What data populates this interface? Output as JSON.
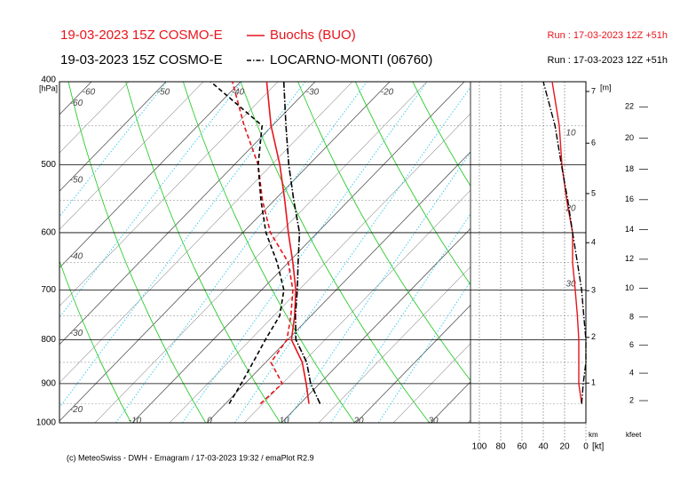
{
  "chart_data": {
    "type": "emagram",
    "ylabel": "[hPa]",
    "ylim": [
      1000,
      400
    ],
    "yticks": [
      400,
      500,
      600,
      700,
      800,
      900,
      1000
    ],
    "log_y": true,
    "isotherm_labels": {
      "top": [
        -60,
        -50,
        -40,
        -30,
        -20
      ],
      "left": [
        -60,
        -50,
        -40,
        -30,
        -20
      ],
      "bottom": [
        -10,
        0,
        10,
        20,
        30
      ]
    },
    "levels": [
      950,
      900,
      850,
      800,
      750,
      700,
      650,
      600,
      550,
      500,
      450,
      400
    ],
    "series": [
      {
        "name": "Buochs (BUO)",
        "title": "19-03-2023 15Z COSMO-E",
        "run": "Run : 17-03-2023 12Z +51h",
        "color": "#e8141b",
        "linestyle": "solid",
        "temperature": [
          11.2,
          8.2,
          4.9,
          0.5,
          -2.2,
          -5.4,
          -9.4,
          -13.9,
          -18.6,
          -23.9,
          -30.2,
          -36.5
        ],
        "dewpoint": [
          4.7,
          5.0,
          0.7,
          -0.1,
          -2.7,
          -5.8,
          -10.0,
          -16.3,
          -21.6,
          -26.8,
          -33.8,
          -41.1
        ],
        "wind_speed": [
          4,
          6.7,
          6.7,
          6.7,
          8,
          10,
          12.5,
          12.5,
          18,
          22.5,
          25,
          31.7
        ]
      },
      {
        "name": "LOCARNO-MONTI (06760)",
        "title": "19-03-2023 15Z COSMO-E",
        "run": "Run : 17-03-2023 12Z +51h",
        "color": "#000000",
        "linestyle": "dashdot",
        "temperature": [
          12.7,
          8.8,
          5.5,
          1.1,
          -2.1,
          -5.2,
          -8.7,
          -12.4,
          -17.4,
          -22.7,
          -28.2,
          -34.2
        ],
        "dewpoint": [
          0.5,
          -0.5,
          -1.7,
          -3.0,
          -4.2,
          -7.0,
          -11.5,
          -16.9,
          -21.8,
          -26.8,
          -31.4,
          -44.0
        ],
        "wind_speed": [
          4,
          2.5,
          0,
          0,
          2,
          4,
          8,
          12.5,
          17,
          23,
          29,
          40
        ]
      }
    ],
    "wind": {
      "xlabel": "[kt]",
      "xlim": [
        100,
        0
      ],
      "xticks": [
        100,
        80,
        60,
        40,
        20,
        0
      ]
    },
    "height_km": {
      "label": "km",
      "top_label": "[m]",
      "ticks": [
        1,
        2,
        3,
        4,
        5,
        6,
        7
      ]
    },
    "height_kft": {
      "label": "kfeet",
      "ticks": [
        2,
        4,
        6,
        8,
        10,
        12,
        14,
        16,
        18,
        20,
        22
      ]
    },
    "annotations": [
      "10",
      "20",
      "30"
    ]
  },
  "footer": "(c) MeteoSwiss - DWH - Emagram / 17-03-2023 19:32 / emaPlot R2.9"
}
